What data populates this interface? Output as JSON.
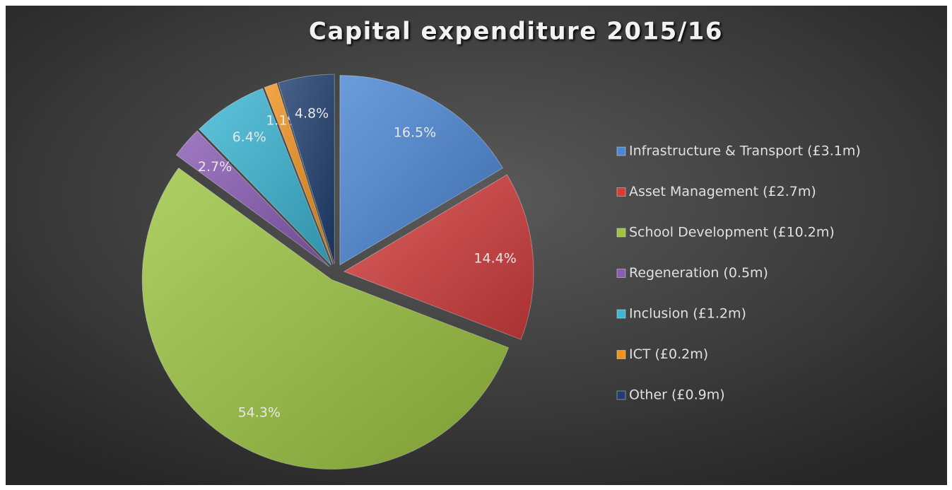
{
  "chart_data": {
    "type": "pie",
    "title": "Capital expenditure 2015/16",
    "categories": [
      "Infrastructure & Transport (£3.1m)",
      "Asset Management (£2.7m)",
      "School Development (£10.2m)",
      "Regeneration (0.5m)",
      "Inclusion (£1.2m)",
      "ICT (£0.2m)",
      "Other (£0.9m)"
    ],
    "values": [
      16.5,
      14.4,
      54.3,
      2.7,
      6.4,
      1.1,
      4.8
    ],
    "value_labels": [
      "16.5%",
      "14.4%",
      "54.3%",
      "2.7%",
      "6.4%",
      "1.1%",
      "4.8%"
    ],
    "colors": [
      "#4a86d4",
      "#d23c3c",
      "#9bc440",
      "#8a5cb5",
      "#3bb6d4",
      "#f0921e",
      "#1f3f70"
    ],
    "legend": "right"
  }
}
